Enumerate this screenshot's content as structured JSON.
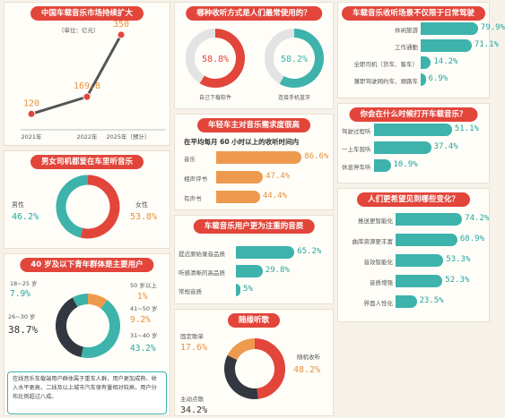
{
  "market": {
    "title": "中国车载音乐市场持续扩大",
    "unit": "（单位：亿元）",
    "chart_data": {
      "type": "line",
      "categories": [
        "2021年",
        "2022年",
        "2025年（预计）"
      ],
      "values": [
        120,
        169.8,
        350
      ],
      "value_labels": [
        "120",
        "169.8",
        "350"
      ]
    }
  },
  "gender": {
    "title": "男女司机都爱在车里听音乐",
    "chart_data": {
      "type": "pie",
      "labels": [
        "男性",
        "女性"
      ],
      "values": [
        46.2,
        53.8
      ],
      "value_labels": [
        "46.2%",
        "53.8%"
      ],
      "colors": [
        "#3db3ac",
        "#e2453a"
      ]
    }
  },
  "age": {
    "title": "40 岁及以下青年群体是主要用户",
    "chart_data": {
      "type": "pie",
      "labels": [
        "18~25 岁",
        "26~30 岁",
        "31~40 岁",
        "41~50 岁",
        "50 岁以上"
      ],
      "values": [
        7.9,
        38.7,
        43.2,
        9.2,
        1
      ],
      "value_labels": [
        "7.9%",
        "38.7%",
        "43.2%",
        "9.2%",
        "1%"
      ],
      "colors": [
        "#3db3ac",
        "#333840",
        "#3db3ac",
        "#ed9a4e",
        "#ed9a4e"
      ]
    },
    "note": "在线音乐车载端用户群体属于重车人群，用户更加成熟、收入水平更高，二线及以上城市汽车保有量相对较高，用户分布比例超过八成。"
  },
  "devices": {
    "title": "哪种收听方式是人们最常使用的？",
    "chart_data": {
      "type": "pie",
      "labels": [
        "自己下载软件",
        "连接手机蓝牙"
      ],
      "values": [
        58.8,
        58.2
      ],
      "value_labels": [
        "58.8%",
        "58.2%"
      ],
      "colors": [
        "#e2453a",
        "#3db3ac"
      ]
    }
  },
  "young_needs": {
    "title": "年轻车主对音乐需求度很高",
    "subtitle": "在平均每月 60 小时以上的收听时间内",
    "chart_data": {
      "type": "bar",
      "categories": [
        "音乐",
        "相声评书",
        "有声书"
      ],
      "values": [
        86.6,
        47.4,
        44.4
      ],
      "value_labels": [
        "86.6%",
        "47.4%",
        "44.4%"
      ]
    }
  },
  "quality": {
    "title": "车载音乐用户更为注重的音质",
    "chart_data": {
      "type": "bar",
      "categories": [
        "提近原始录音品质",
        "听感清晰的高品质",
        "常规音质"
      ],
      "values": [
        65.2,
        29.8,
        5
      ],
      "value_labels": [
        "65.2%",
        "29.8%",
        "5%"
      ]
    }
  },
  "random": {
    "title": "随缘听歌",
    "chart_data": {
      "type": "pie",
      "labels": [
        "固定歌单",
        "随机收听",
        "主动点歌"
      ],
      "values": [
        17.6,
        48.2,
        34.2
      ],
      "value_labels": [
        "17.6%",
        "48.2%",
        "34.2%"
      ],
      "colors": [
        "#ed9a4e",
        "#e2453a",
        "#333840"
      ]
    }
  },
  "scenes": {
    "title": "车载音乐收听场景不仅限于日常驾驶",
    "chart_data": {
      "type": "bar",
      "categories": [
        "休闲旅游",
        "工作通勤",
        "全职司机（货车、客车）",
        "兼职驾驶网约车、顺路车"
      ],
      "values": [
        79.9,
        71.1,
        14.2,
        6.9
      ],
      "value_labels": [
        "79.9%",
        "71.1%",
        "14.2%",
        "6.9%"
      ]
    }
  },
  "timing": {
    "title": "你会在什么时候打开车载音乐？",
    "chart_data": {
      "type": "bar",
      "categories": [
        "驾驶过程听",
        "一上车就听",
        "休息停车听"
      ],
      "values": [
        51.1,
        37.4,
        10.9
      ],
      "value_labels": [
        "51.1%",
        "37.4%",
        "10.9%"
      ]
    }
  },
  "changes": {
    "title": "人们更希望见到哪些变化？",
    "chart_data": {
      "type": "bar",
      "categories": [
        "推送更智能化",
        "曲库资源更丰富",
        "音效智能化",
        "音质增强",
        "界面人性化"
      ],
      "values": [
        74.2,
        68.9,
        53.3,
        52.3,
        23.5
      ],
      "value_labels": [
        "74.2%",
        "68.9%",
        "53.3%",
        "52.3%",
        "23.5%"
      ]
    }
  }
}
